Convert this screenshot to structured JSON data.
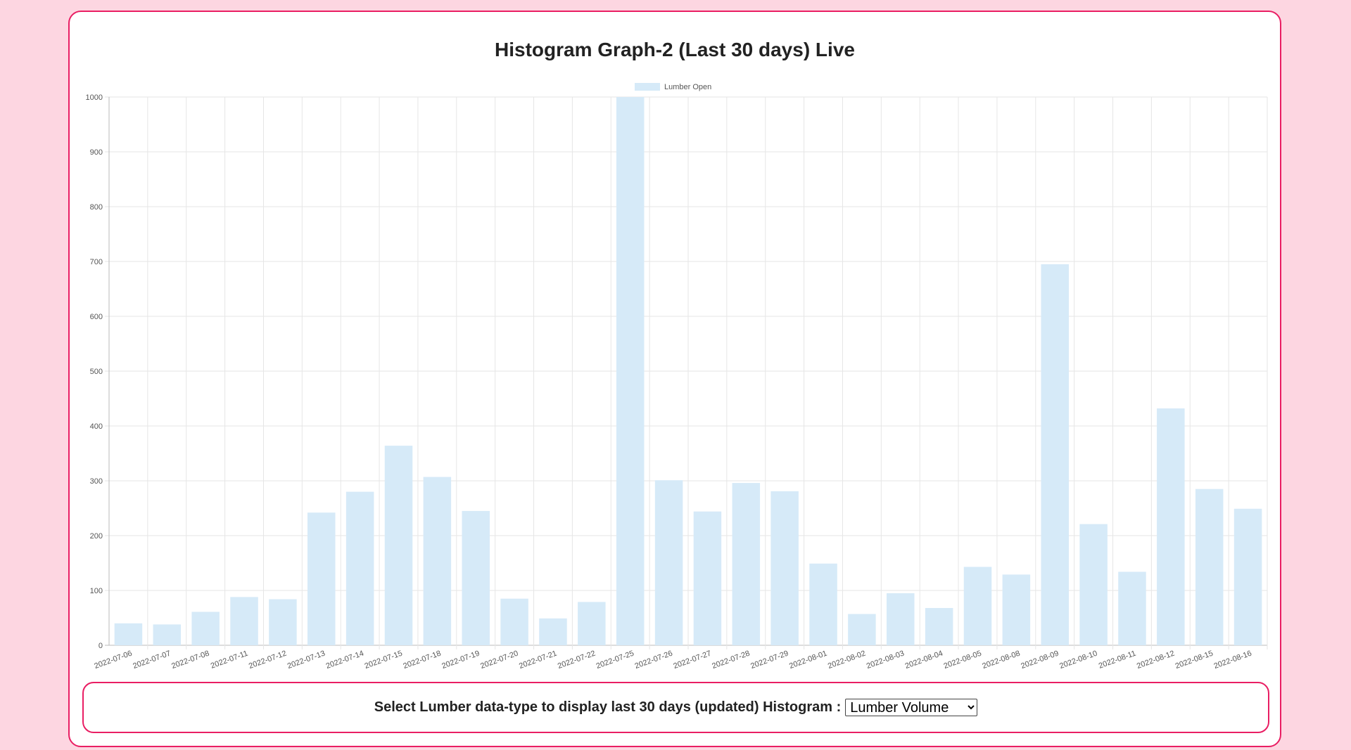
{
  "page": {
    "title": "Histogram Graph-2 (Last 30 days) Live"
  },
  "selector": {
    "label": "Select Lumber data-type to display last 30 days (updated) Histogram :",
    "selected": "Lumber Volume",
    "options": [
      "Lumber Volume"
    ]
  },
  "colors": {
    "page_background": "#fdd6e1",
    "border_accent": "#e91e63",
    "bar_fill": "#d6eaf8",
    "grid": "#e6e6e6"
  },
  "chart_data": {
    "type": "bar",
    "title": "Histogram Graph-2 (Last 30 days) Live",
    "xlabel": "",
    "ylabel": "",
    "ylim": [
      0,
      1000
    ],
    "yticks": [
      0,
      100,
      200,
      300,
      400,
      500,
      600,
      700,
      800,
      900,
      1000
    ],
    "grid": true,
    "legend": "top-center",
    "categories": [
      "2022-07-06",
      "2022-07-07",
      "2022-07-08",
      "2022-07-11",
      "2022-07-12",
      "2022-07-13",
      "2022-07-14",
      "2022-07-15",
      "2022-07-18",
      "2022-07-19",
      "2022-07-20",
      "2022-07-21",
      "2022-07-22",
      "2022-07-25",
      "2022-07-26",
      "2022-07-27",
      "2022-07-28",
      "2022-07-29",
      "2022-08-01",
      "2022-08-02",
      "2022-08-03",
      "2022-08-04",
      "2022-08-05",
      "2022-08-08",
      "2022-08-09",
      "2022-08-10",
      "2022-08-11",
      "2022-08-12",
      "2022-08-15",
      "2022-08-16"
    ],
    "series": [
      {
        "name": "Lumber Open",
        "values": [
          40,
          38,
          61,
          88,
          84,
          242,
          280,
          364,
          307,
          245,
          85,
          49,
          79,
          1000,
          301,
          244,
          296,
          281,
          149,
          57,
          95,
          68,
          143,
          129,
          695,
          221,
          134,
          432,
          285,
          249
        ]
      }
    ]
  }
}
